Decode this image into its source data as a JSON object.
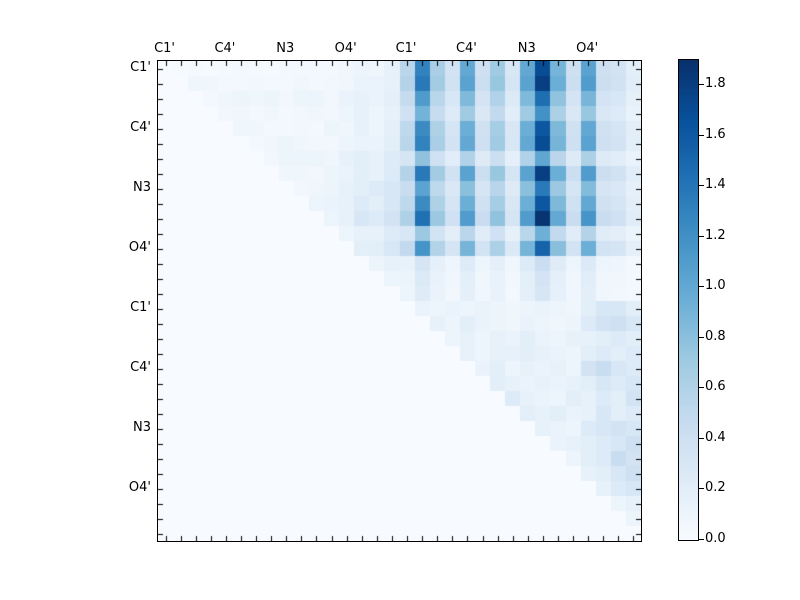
{
  "chart_data": {
    "type": "heatmap",
    "title": "",
    "xlabel": "",
    "ylabel": "",
    "matrix_size": 32,
    "x_ticklabels": [
      "C1'",
      "C4'",
      "N3",
      "O4'",
      "C1'",
      "C4'",
      "N3",
      "O4'"
    ],
    "y_ticklabels": [
      "C1'",
      "C4'",
      "N3",
      "O4'",
      "C1'",
      "C4'",
      "N3",
      "O4'"
    ],
    "tick_label_rows": [
      0,
      4,
      8,
      12,
      16,
      20,
      24,
      28
    ],
    "minor_ticks_every_cell": true,
    "grid": false,
    "colormap": "Blues",
    "colormap_stops": [
      "#f7fbff",
      "#deebf7",
      "#c6dbef",
      "#9ecae1",
      "#6baed6",
      "#4292c6",
      "#2171b5",
      "#08519c",
      "#08306b"
    ],
    "vmin": 0.0,
    "vmax": 1.9,
    "colorbar_position": "right",
    "colorbar_ticks": [
      "0.0",
      "0.2",
      "0.4",
      "0.6",
      "0.8",
      "1.0",
      "1.2",
      "1.4",
      "1.6",
      "1.8"
    ],
    "colorbar_tick_values": [
      0.0,
      0.2,
      0.4,
      0.6,
      0.8,
      1.0,
      1.2,
      1.4,
      1.6,
      1.8
    ],
    "values": [
      [
        0,
        0.02,
        0.03,
        0.02,
        0.03,
        0.04,
        0.03,
        0.02,
        0.04,
        0.05,
        0.04,
        0.05,
        0.08,
        0.1,
        0.08,
        0.15,
        0.55,
        1.3,
        0.65,
        0.35,
        1.0,
        0.4,
        0.7,
        0.3,
        1.0,
        1.7,
        0.9,
        0.4,
        1.05,
        0.4,
        0.35,
        0.2
      ],
      [
        0,
        0,
        0.08,
        0.08,
        0.04,
        0.05,
        0.06,
        0.04,
        0.05,
        0.08,
        0.05,
        0.06,
        0.08,
        0.12,
        0.12,
        0.15,
        0.58,
        1.37,
        0.68,
        0.37,
        1.05,
        0.42,
        0.74,
        0.32,
        1.05,
        1.79,
        0.95,
        0.42,
        1.1,
        0.42,
        0.37,
        0.21
      ],
      [
        0,
        0,
        0,
        0.05,
        0.08,
        0.1,
        0.08,
        0.1,
        0.06,
        0.1,
        0.1,
        0.06,
        0.12,
        0.15,
        0.12,
        0.18,
        0.47,
        1.11,
        0.55,
        0.3,
        0.85,
        0.34,
        0.6,
        0.26,
        0.85,
        1.45,
        0.77,
        0.34,
        0.89,
        0.34,
        0.3,
        0.17
      ],
      [
        0,
        0,
        0,
        0,
        0.06,
        0.08,
        0.05,
        0.08,
        0.05,
        0.06,
        0.08,
        0.06,
        0.1,
        0.15,
        0.1,
        0.15,
        0.39,
        0.91,
        0.46,
        0.25,
        0.7,
        0.28,
        0.49,
        0.21,
        0.7,
        1.19,
        0.63,
        0.28,
        0.74,
        0.28,
        0.25,
        0.14
      ],
      [
        0,
        0,
        0,
        0,
        0,
        0.08,
        0.08,
        0.04,
        0.05,
        0.06,
        0.05,
        0.1,
        0.08,
        0.15,
        0.1,
        0.18,
        0.52,
        1.24,
        0.62,
        0.33,
        0.95,
        0.38,
        0.67,
        0.29,
        0.95,
        1.62,
        0.86,
        0.38,
        1.0,
        0.38,
        0.33,
        0.19
      ],
      [
        0,
        0,
        0,
        0,
        0,
        0,
        0.05,
        0.08,
        0.1,
        0.08,
        0.06,
        0.06,
        0.1,
        0.12,
        0.12,
        0.2,
        0.55,
        1.3,
        0.65,
        0.35,
        1.0,
        0.4,
        0.7,
        0.3,
        1.0,
        1.7,
        0.9,
        0.4,
        1.05,
        0.4,
        0.35,
        0.2
      ],
      [
        0,
        0,
        0,
        0,
        0,
        0,
        0,
        0.06,
        0.1,
        0.1,
        0.1,
        0.08,
        0.15,
        0.2,
        0.15,
        0.25,
        0.33,
        0.78,
        0.39,
        0.21,
        0.6,
        0.24,
        0.42,
        0.18,
        0.6,
        1.02,
        0.54,
        0.24,
        0.63,
        0.24,
        0.21,
        0.12
      ],
      [
        0,
        0,
        0,
        0,
        0,
        0,
        0,
        0,
        0.08,
        0.08,
        0.06,
        0.1,
        0.12,
        0.2,
        0.15,
        0.25,
        0.58,
        1.37,
        0.68,
        0.37,
        1.05,
        0.42,
        0.74,
        0.32,
        1.05,
        1.79,
        0.95,
        0.42,
        1.1,
        0.42,
        0.37,
        0.21
      ],
      [
        0,
        0,
        0,
        0,
        0,
        0,
        0,
        0,
        0,
        0.06,
        0.08,
        0.1,
        0.15,
        0.2,
        0.25,
        0.3,
        0.44,
        1.04,
        0.52,
        0.28,
        0.8,
        0.32,
        0.56,
        0.24,
        0.8,
        1.36,
        0.72,
        0.32,
        0.84,
        0.32,
        0.28,
        0.16
      ],
      [
        0,
        0,
        0,
        0,
        0,
        0,
        0,
        0,
        0,
        0,
        0.1,
        0.12,
        0.15,
        0.25,
        0.2,
        0.3,
        0.52,
        1.24,
        0.62,
        0.33,
        0.95,
        0.38,
        0.67,
        0.29,
        0.95,
        1.62,
        0.86,
        0.38,
        1.0,
        0.38,
        0.33,
        0.19
      ],
      [
        0,
        0,
        0,
        0,
        0,
        0,
        0,
        0,
        0,
        0,
        0,
        0.1,
        0.15,
        0.3,
        0.25,
        0.35,
        0.61,
        1.43,
        0.72,
        0.39,
        1.1,
        0.44,
        0.77,
        0.33,
        1.1,
        1.87,
        0.99,
        0.44,
        1.16,
        0.44,
        0.39,
        0.22
      ],
      [
        0,
        0,
        0,
        0,
        0,
        0,
        0,
        0,
        0,
        0,
        0,
        0,
        0.1,
        0.15,
        0.15,
        0.25,
        0.3,
        0.72,
        0.36,
        0.19,
        0.55,
        0.22,
        0.39,
        0.17,
        0.55,
        0.94,
        0.5,
        0.22,
        0.58,
        0.22,
        0.19,
        0.11
      ],
      [
        0,
        0,
        0,
        0,
        0,
        0,
        0,
        0,
        0,
        0,
        0,
        0,
        0,
        0.2,
        0.2,
        0.3,
        0.5,
        1.17,
        0.59,
        0.32,
        0.9,
        0.36,
        0.63,
        0.27,
        0.9,
        1.53,
        0.81,
        0.36,
        0.95,
        0.36,
        0.32,
        0.18
      ],
      [
        0,
        0,
        0,
        0,
        0,
        0,
        0,
        0,
        0,
        0,
        0,
        0,
        0,
        0,
        0.1,
        0.15,
        0.14,
        0.33,
        0.16,
        0.09,
        0.25,
        0.1,
        0.18,
        0.08,
        0.25,
        0.43,
        0.23,
        0.1,
        0.26,
        0.1,
        0.09,
        0.05
      ],
      [
        0,
        0,
        0,
        0,
        0,
        0,
        0,
        0,
        0,
        0,
        0,
        0,
        0,
        0,
        0,
        0.1,
        0.11,
        0.26,
        0.13,
        0.07,
        0.2,
        0.08,
        0.14,
        0.06,
        0.2,
        0.34,
        0.18,
        0.08,
        0.21,
        0.08,
        0.07,
        0.04
      ],
      [
        0,
        0,
        0,
        0,
        0,
        0,
        0,
        0,
        0,
        0,
        0,
        0,
        0,
        0,
        0,
        0,
        0.1,
        0.23,
        0.12,
        0.06,
        0.18,
        0.07,
        0.13,
        0.05,
        0.18,
        0.31,
        0.16,
        0.07,
        0.19,
        0.07,
        0.06,
        0.04
      ],
      [
        0,
        0,
        0,
        0,
        0,
        0,
        0,
        0,
        0,
        0,
        0,
        0,
        0,
        0,
        0,
        0,
        0,
        0.12,
        0.1,
        0.12,
        0.1,
        0.12,
        0.1,
        0.08,
        0.1,
        0.12,
        0.1,
        0.08,
        0.2,
        0.3,
        0.3,
        0.2
      ],
      [
        0,
        0,
        0,
        0,
        0,
        0,
        0,
        0,
        0,
        0,
        0,
        0,
        0,
        0,
        0,
        0,
        0,
        0,
        0.15,
        0.1,
        0.2,
        0.12,
        0.1,
        0.08,
        0.12,
        0.1,
        0.08,
        0.1,
        0.25,
        0.35,
        0.4,
        0.3
      ],
      [
        0,
        0,
        0,
        0,
        0,
        0,
        0,
        0,
        0,
        0,
        0,
        0,
        0,
        0,
        0,
        0,
        0,
        0,
        0,
        0.1,
        0.15,
        0.1,
        0.15,
        0.12,
        0.2,
        0.12,
        0.1,
        0.15,
        0.15,
        0.2,
        0.25,
        0.2
      ],
      [
        0,
        0,
        0,
        0,
        0,
        0,
        0,
        0,
        0,
        0,
        0,
        0,
        0,
        0,
        0,
        0,
        0,
        0,
        0,
        0,
        0.15,
        0.1,
        0.15,
        0.15,
        0.2,
        0.15,
        0.12,
        0.1,
        0.2,
        0.25,
        0.2,
        0.25
      ],
      [
        0,
        0,
        0,
        0,
        0,
        0,
        0,
        0,
        0,
        0,
        0,
        0,
        0,
        0,
        0,
        0,
        0,
        0,
        0,
        0,
        0,
        0.12,
        0.2,
        0.1,
        0.15,
        0.12,
        0.15,
        0.1,
        0.35,
        0.45,
        0.3,
        0.25
      ],
      [
        0,
        0,
        0,
        0,
        0,
        0,
        0,
        0,
        0,
        0,
        0,
        0,
        0,
        0,
        0,
        0,
        0,
        0,
        0,
        0,
        0,
        0,
        0.2,
        0.15,
        0.12,
        0.15,
        0.12,
        0.15,
        0.2,
        0.3,
        0.25,
        0.3
      ],
      [
        0,
        0,
        0,
        0,
        0,
        0,
        0,
        0,
        0,
        0,
        0,
        0,
        0,
        0,
        0,
        0,
        0,
        0,
        0,
        0,
        0,
        0,
        0,
        0.25,
        0.15,
        0.12,
        0.1,
        0.2,
        0.15,
        0.25,
        0.2,
        0.35
      ],
      [
        0,
        0,
        0,
        0,
        0,
        0,
        0,
        0,
        0,
        0,
        0,
        0,
        0,
        0,
        0,
        0,
        0,
        0,
        0,
        0,
        0,
        0,
        0,
        0,
        0.2,
        0.15,
        0.2,
        0.12,
        0.15,
        0.3,
        0.2,
        0.25
      ],
      [
        0,
        0,
        0,
        0,
        0,
        0,
        0,
        0,
        0,
        0,
        0,
        0,
        0,
        0,
        0,
        0,
        0,
        0,
        0,
        0,
        0,
        0,
        0,
        0,
        0,
        0.15,
        0.12,
        0.1,
        0.25,
        0.3,
        0.35,
        0.3
      ],
      [
        0,
        0,
        0,
        0,
        0,
        0,
        0,
        0,
        0,
        0,
        0,
        0,
        0,
        0,
        0,
        0,
        0,
        0,
        0,
        0,
        0,
        0,
        0,
        0,
        0,
        0,
        0.12,
        0.15,
        0.2,
        0.25,
        0.3,
        0.4
      ],
      [
        0,
        0,
        0,
        0,
        0,
        0,
        0,
        0,
        0,
        0,
        0,
        0,
        0,
        0,
        0,
        0,
        0,
        0,
        0,
        0,
        0,
        0,
        0,
        0,
        0,
        0,
        0,
        0.1,
        0.2,
        0.25,
        0.45,
        0.35
      ],
      [
        0,
        0,
        0,
        0,
        0,
        0,
        0,
        0,
        0,
        0,
        0,
        0,
        0,
        0,
        0,
        0,
        0,
        0,
        0,
        0,
        0,
        0,
        0,
        0,
        0,
        0,
        0,
        0,
        0.15,
        0.2,
        0.3,
        0.4
      ],
      [
        0,
        0,
        0,
        0,
        0,
        0,
        0,
        0,
        0,
        0,
        0,
        0,
        0,
        0,
        0,
        0,
        0,
        0,
        0,
        0,
        0,
        0,
        0,
        0,
        0,
        0,
        0,
        0,
        0,
        0.15,
        0.25,
        0.3
      ],
      [
        0,
        0,
        0,
        0,
        0,
        0,
        0,
        0,
        0,
        0,
        0,
        0,
        0,
        0,
        0,
        0,
        0,
        0,
        0,
        0,
        0,
        0,
        0,
        0,
        0,
        0,
        0,
        0,
        0,
        0,
        0.1,
        0.15
      ],
      [
        0,
        0,
        0,
        0,
        0,
        0,
        0,
        0,
        0,
        0,
        0,
        0,
        0,
        0,
        0,
        0,
        0,
        0,
        0,
        0,
        0,
        0,
        0,
        0,
        0,
        0,
        0,
        0,
        0,
        0,
        0,
        0.1
      ],
      [
        0,
        0,
        0,
        0,
        0,
        0,
        0,
        0,
        0,
        0,
        0,
        0,
        0,
        0,
        0,
        0,
        0,
        0,
        0,
        0,
        0,
        0,
        0,
        0,
        0,
        0,
        0,
        0,
        0,
        0,
        0,
        0
      ]
    ]
  }
}
